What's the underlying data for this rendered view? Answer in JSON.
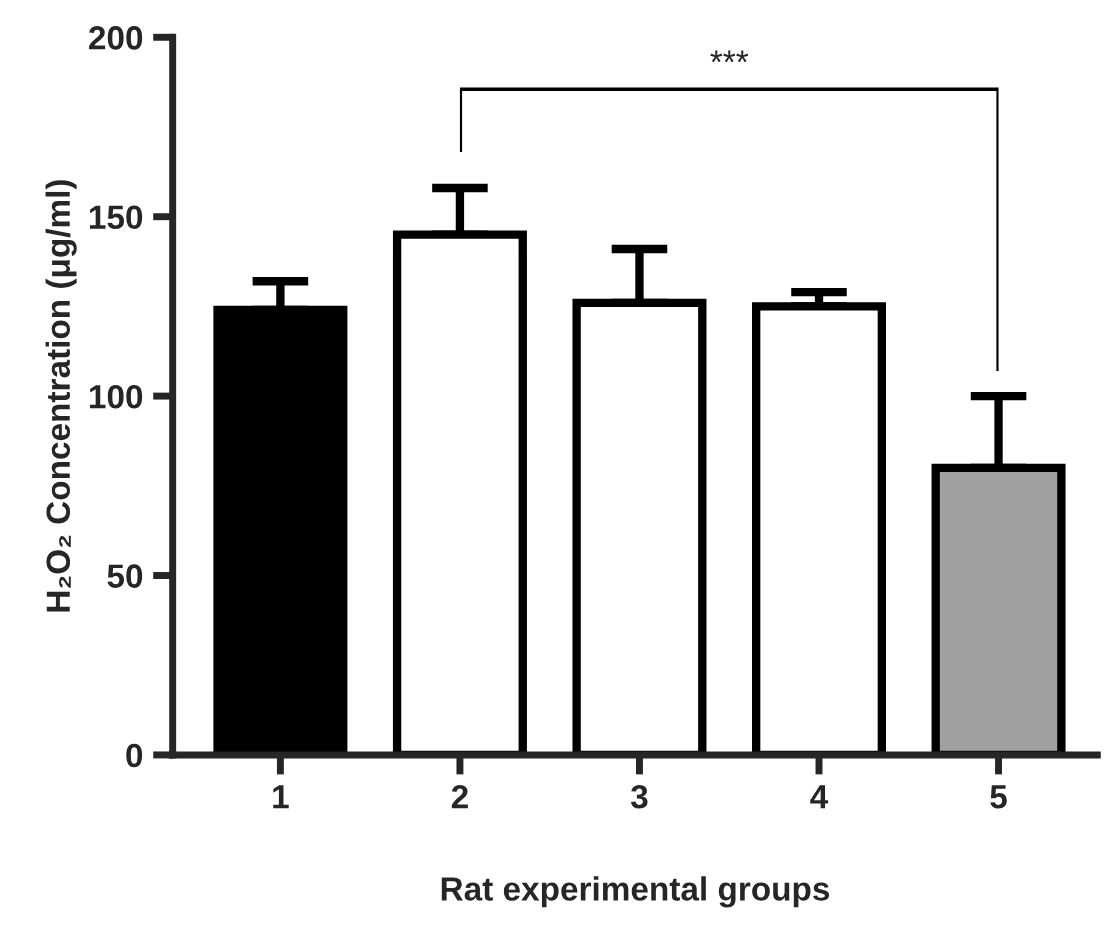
{
  "chart_data": {
    "type": "bar",
    "categories": [
      "1",
      "2",
      "3",
      "4",
      "5"
    ],
    "values": [
      124,
      145,
      126,
      125,
      80
    ],
    "errors": [
      8,
      13,
      15,
      4,
      20
    ],
    "colors": [
      "#000000",
      "#ffffff",
      "#ffffff",
      "#ffffff",
      "#a0a0a0"
    ],
    "xlabel": "Rat experimental groups",
    "ylabel": "H₂O₂ Concentration (μg/ml)",
    "ylim": [
      0,
      200
    ],
    "yticks": [
      0,
      50,
      100,
      150,
      200
    ],
    "annotations": [
      "***"
    ],
    "grid": false,
    "legend": false
  }
}
